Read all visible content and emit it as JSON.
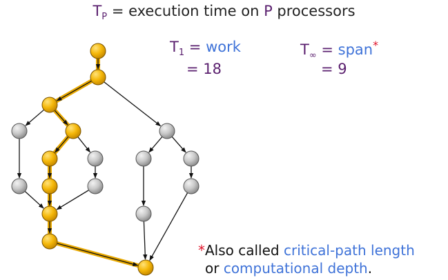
{
  "title": {
    "t": "T",
    "p": "P",
    "rest": " = execution time on ",
    "p2": "P",
    "end": " processors"
  },
  "work": {
    "sym": "T",
    "sub": "1",
    "eq": " = ",
    "word": "work",
    "value": "= 18"
  },
  "span": {
    "sym": "T",
    "sub": "∞",
    "eq": " = ",
    "word": "span",
    "star": "*",
    "value": "= 9"
  },
  "note": {
    "star": "*",
    "line1_text": "Also called ",
    "line1_term": "critical-path length",
    "line2_text": "or ",
    "line2_term": "computational depth",
    "line2_end": "."
  },
  "colors": {
    "critical_node": "#f5b80a",
    "regular_node": "#c8c8c8",
    "critical_edge": "#e9a900",
    "accent_purple": "#5a1f6e",
    "accent_blue": "#3e72d8",
    "star_red": "#e0142a"
  }
}
